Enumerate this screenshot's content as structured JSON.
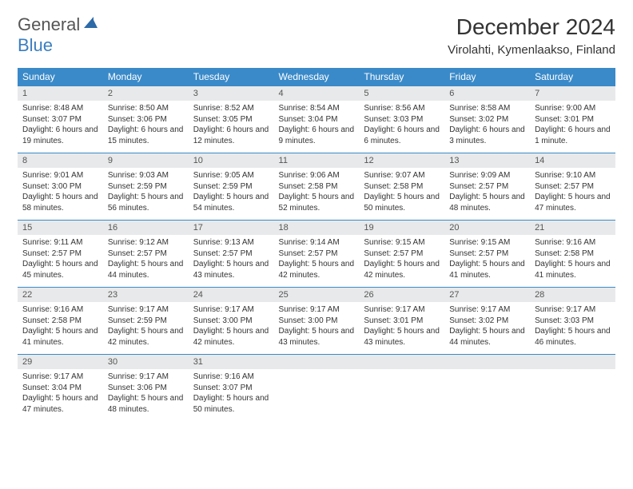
{
  "logo": {
    "text1": "General",
    "text2": "Blue"
  },
  "title": "December 2024",
  "location": "Virolahti, Kymenlaakso, Finland",
  "colors": {
    "headerBg": "#3a8ac9",
    "dayBarBg": "#e8e9ea",
    "logoAccent": "#3a7ec0"
  },
  "dow": [
    "Sunday",
    "Monday",
    "Tuesday",
    "Wednesday",
    "Thursday",
    "Friday",
    "Saturday"
  ],
  "weeks": [
    [
      {
        "n": "1",
        "sr": "Sunrise: 8:48 AM",
        "ss": "Sunset: 3:07 PM",
        "dl": "Daylight: 6 hours and 19 minutes."
      },
      {
        "n": "2",
        "sr": "Sunrise: 8:50 AM",
        "ss": "Sunset: 3:06 PM",
        "dl": "Daylight: 6 hours and 15 minutes."
      },
      {
        "n": "3",
        "sr": "Sunrise: 8:52 AM",
        "ss": "Sunset: 3:05 PM",
        "dl": "Daylight: 6 hours and 12 minutes."
      },
      {
        "n": "4",
        "sr": "Sunrise: 8:54 AM",
        "ss": "Sunset: 3:04 PM",
        "dl": "Daylight: 6 hours and 9 minutes."
      },
      {
        "n": "5",
        "sr": "Sunrise: 8:56 AM",
        "ss": "Sunset: 3:03 PM",
        "dl": "Daylight: 6 hours and 6 minutes."
      },
      {
        "n": "6",
        "sr": "Sunrise: 8:58 AM",
        "ss": "Sunset: 3:02 PM",
        "dl": "Daylight: 6 hours and 3 minutes."
      },
      {
        "n": "7",
        "sr": "Sunrise: 9:00 AM",
        "ss": "Sunset: 3:01 PM",
        "dl": "Daylight: 6 hours and 1 minute."
      }
    ],
    [
      {
        "n": "8",
        "sr": "Sunrise: 9:01 AM",
        "ss": "Sunset: 3:00 PM",
        "dl": "Daylight: 5 hours and 58 minutes."
      },
      {
        "n": "9",
        "sr": "Sunrise: 9:03 AM",
        "ss": "Sunset: 2:59 PM",
        "dl": "Daylight: 5 hours and 56 minutes."
      },
      {
        "n": "10",
        "sr": "Sunrise: 9:05 AM",
        "ss": "Sunset: 2:59 PM",
        "dl": "Daylight: 5 hours and 54 minutes."
      },
      {
        "n": "11",
        "sr": "Sunrise: 9:06 AM",
        "ss": "Sunset: 2:58 PM",
        "dl": "Daylight: 5 hours and 52 minutes."
      },
      {
        "n": "12",
        "sr": "Sunrise: 9:07 AM",
        "ss": "Sunset: 2:58 PM",
        "dl": "Daylight: 5 hours and 50 minutes."
      },
      {
        "n": "13",
        "sr": "Sunrise: 9:09 AM",
        "ss": "Sunset: 2:57 PM",
        "dl": "Daylight: 5 hours and 48 minutes."
      },
      {
        "n": "14",
        "sr": "Sunrise: 9:10 AM",
        "ss": "Sunset: 2:57 PM",
        "dl": "Daylight: 5 hours and 47 minutes."
      }
    ],
    [
      {
        "n": "15",
        "sr": "Sunrise: 9:11 AM",
        "ss": "Sunset: 2:57 PM",
        "dl": "Daylight: 5 hours and 45 minutes."
      },
      {
        "n": "16",
        "sr": "Sunrise: 9:12 AM",
        "ss": "Sunset: 2:57 PM",
        "dl": "Daylight: 5 hours and 44 minutes."
      },
      {
        "n": "17",
        "sr": "Sunrise: 9:13 AM",
        "ss": "Sunset: 2:57 PM",
        "dl": "Daylight: 5 hours and 43 minutes."
      },
      {
        "n": "18",
        "sr": "Sunrise: 9:14 AM",
        "ss": "Sunset: 2:57 PM",
        "dl": "Daylight: 5 hours and 42 minutes."
      },
      {
        "n": "19",
        "sr": "Sunrise: 9:15 AM",
        "ss": "Sunset: 2:57 PM",
        "dl": "Daylight: 5 hours and 42 minutes."
      },
      {
        "n": "20",
        "sr": "Sunrise: 9:15 AM",
        "ss": "Sunset: 2:57 PM",
        "dl": "Daylight: 5 hours and 41 minutes."
      },
      {
        "n": "21",
        "sr": "Sunrise: 9:16 AM",
        "ss": "Sunset: 2:58 PM",
        "dl": "Daylight: 5 hours and 41 minutes."
      }
    ],
    [
      {
        "n": "22",
        "sr": "Sunrise: 9:16 AM",
        "ss": "Sunset: 2:58 PM",
        "dl": "Daylight: 5 hours and 41 minutes."
      },
      {
        "n": "23",
        "sr": "Sunrise: 9:17 AM",
        "ss": "Sunset: 2:59 PM",
        "dl": "Daylight: 5 hours and 42 minutes."
      },
      {
        "n": "24",
        "sr": "Sunrise: 9:17 AM",
        "ss": "Sunset: 3:00 PM",
        "dl": "Daylight: 5 hours and 42 minutes."
      },
      {
        "n": "25",
        "sr": "Sunrise: 9:17 AM",
        "ss": "Sunset: 3:00 PM",
        "dl": "Daylight: 5 hours and 43 minutes."
      },
      {
        "n": "26",
        "sr": "Sunrise: 9:17 AM",
        "ss": "Sunset: 3:01 PM",
        "dl": "Daylight: 5 hours and 43 minutes."
      },
      {
        "n": "27",
        "sr": "Sunrise: 9:17 AM",
        "ss": "Sunset: 3:02 PM",
        "dl": "Daylight: 5 hours and 44 minutes."
      },
      {
        "n": "28",
        "sr": "Sunrise: 9:17 AM",
        "ss": "Sunset: 3:03 PM",
        "dl": "Daylight: 5 hours and 46 minutes."
      }
    ],
    [
      {
        "n": "29",
        "sr": "Sunrise: 9:17 AM",
        "ss": "Sunset: 3:04 PM",
        "dl": "Daylight: 5 hours and 47 minutes."
      },
      {
        "n": "30",
        "sr": "Sunrise: 9:17 AM",
        "ss": "Sunset: 3:06 PM",
        "dl": "Daylight: 5 hours and 48 minutes."
      },
      {
        "n": "31",
        "sr": "Sunrise: 9:16 AM",
        "ss": "Sunset: 3:07 PM",
        "dl": "Daylight: 5 hours and 50 minutes."
      },
      null,
      null,
      null,
      null
    ]
  ]
}
